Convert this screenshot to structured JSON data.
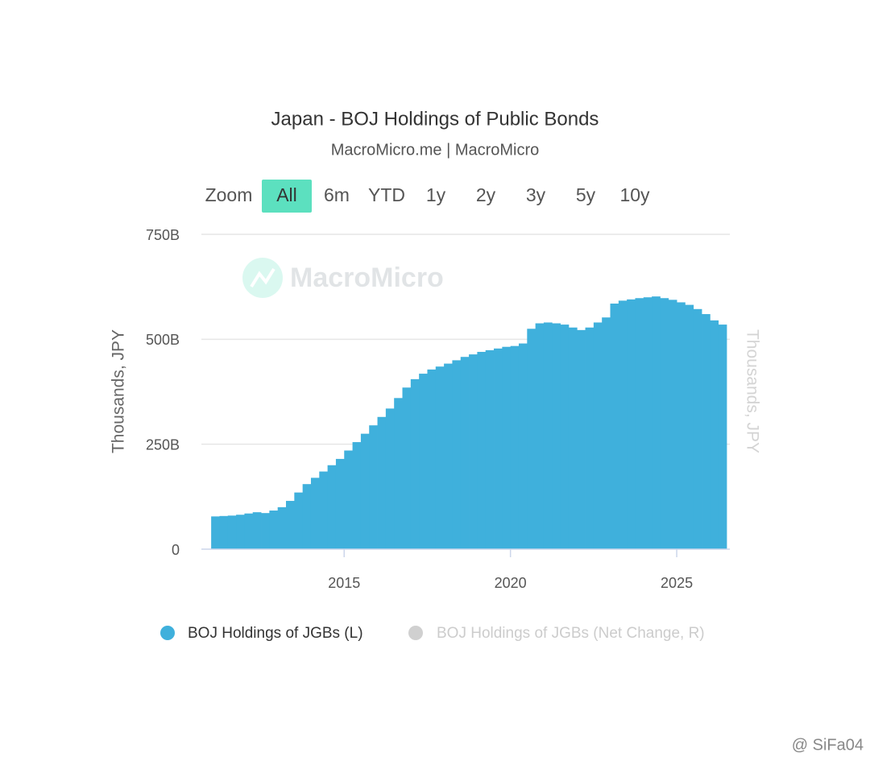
{
  "chart_data": {
    "type": "bar",
    "title": "Japan - BOJ Holdings of Public Bonds",
    "subtitle": "MacroMicro.me | MacroMicro",
    "watermark": "MacroMicro",
    "range_selector": {
      "label": "Zoom",
      "buttons": [
        "All",
        "6m",
        "YTD",
        "1y",
        "2y",
        "3y",
        "5y",
        "10y"
      ],
      "selected": 0,
      "selected_color": "#5ce0bf"
    },
    "ylabel": "Thousands, JPY",
    "y2label": "Thousands, JPY",
    "xlim": [
      2010.9,
      2026.5
    ],
    "xticks": [
      2015,
      2020,
      2025
    ],
    "ylim": [
      0,
      750
    ],
    "yticks": [
      0,
      {
        "value": 250,
        "label": "250B"
      },
      {
        "value": 500,
        "label": "500B"
      },
      {
        "value": 750,
        "label": "750B"
      }
    ],
    "grid": true,
    "x": [
      2011,
      2011.25,
      2011.5,
      2011.75,
      2012,
      2012.25,
      2012.5,
      2012.75,
      2013,
      2013.25,
      2013.5,
      2013.75,
      2014,
      2014.25,
      2014.5,
      2014.75,
      2015,
      2015.25,
      2015.5,
      2015.75,
      2016,
      2016.25,
      2016.5,
      2016.75,
      2017,
      2017.25,
      2017.5,
      2017.75,
      2018,
      2018.25,
      2018.5,
      2018.75,
      2019,
      2019.25,
      2019.5,
      2019.75,
      2020,
      2020.25,
      2020.5,
      2020.75,
      2021,
      2021.25,
      2021.5,
      2021.75,
      2022,
      2022.25,
      2022.5,
      2022.75,
      2023,
      2023.25,
      2023.5,
      2023.75,
      2024,
      2024.25,
      2024.5,
      2024.75,
      2025,
      2025.25,
      2025.5,
      2025.75,
      2026,
      2026.25
    ],
    "series": [
      {
        "name": "BOJ Holdings of JGBs (L)",
        "color": "#3fb0dc",
        "values": [
          78,
          79,
          80,
          82,
          85,
          88,
          86,
          92,
          100,
          115,
          135,
          155,
          170,
          185,
          200,
          215,
          235,
          255,
          275,
          295,
          315,
          335,
          360,
          385,
          405,
          418,
          428,
          435,
          442,
          450,
          458,
          464,
          470,
          474,
          478,
          482,
          484,
          490,
          525,
          538,
          540,
          538,
          535,
          528,
          522,
          528,
          540,
          552,
          585,
          592,
          595,
          598,
          600,
          602,
          598,
          594,
          588,
          582,
          572,
          560,
          545,
          535
        ]
      },
      {
        "name": "BOJ Holdings of JGBs (Net Change, R)",
        "color": "#d0d0d0",
        "axis": "y2",
        "visible": false
      }
    ],
    "credit": "@ SiFa04"
  }
}
